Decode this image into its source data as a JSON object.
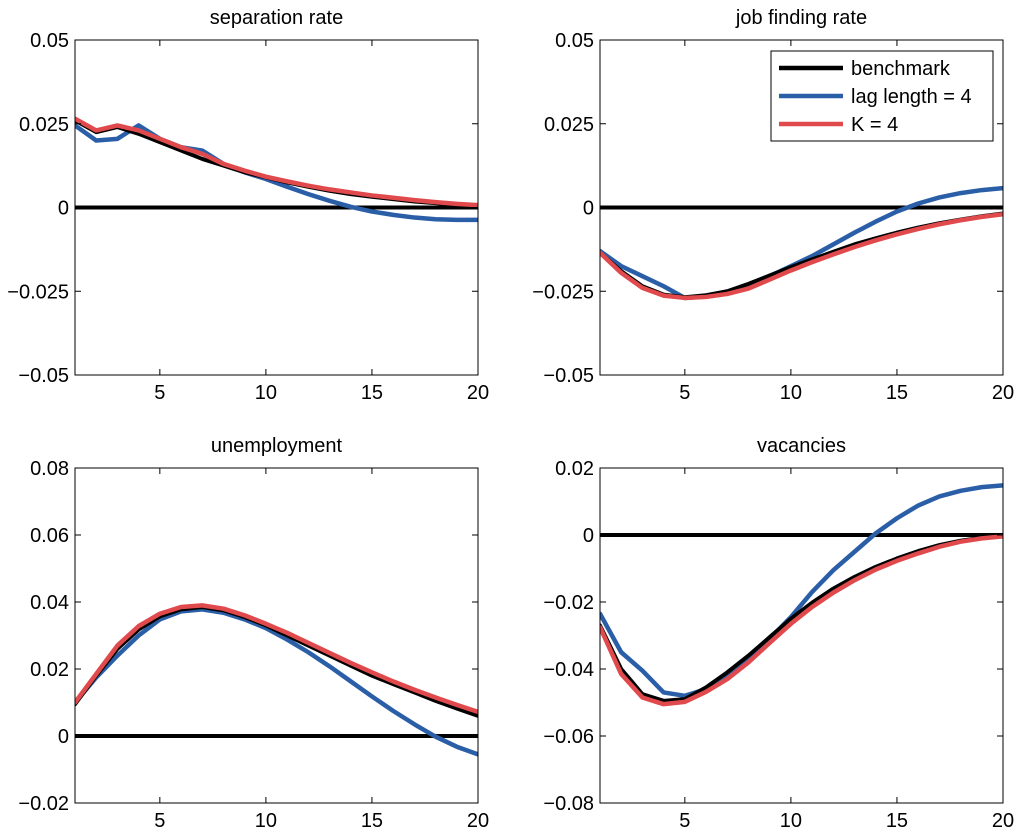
{
  "colors": {
    "benchmark": "#000000",
    "lag": "#2a5fa8",
    "k": "#e14a4d",
    "zero_line": "#000000",
    "axis": "#000000"
  },
  "legend": {
    "placement": "top-right",
    "entries": [
      "benchmark",
      "lag length = 4",
      "K = 4"
    ]
  },
  "chart_data": [
    {
      "type": "line",
      "title": "separation rate",
      "xlim": [
        1,
        20
      ],
      "ylim": [
        -0.05,
        0.05
      ],
      "xticks": [
        5,
        10,
        15,
        20
      ],
      "xtick_labels": [
        "5",
        "10",
        "15",
        "20"
      ],
      "yticks": [
        -0.05,
        -0.025,
        0,
        0.025,
        0.05
      ],
      "ytick_labels": [
        "−0.05",
        "−0.025",
        "0",
        "0.025",
        "0.05"
      ],
      "x": [
        1,
        2,
        3,
        4,
        5,
        6,
        7,
        8,
        9,
        10,
        11,
        12,
        13,
        14,
        15,
        16,
        17,
        18,
        19,
        20
      ],
      "series": [
        {
          "name": "benchmark",
          "values": [
            0.026,
            0.0225,
            0.024,
            0.022,
            0.0195,
            0.017,
            0.0145,
            0.0125,
            0.0105,
            0.009,
            0.0075,
            0.0062,
            0.005,
            0.004,
            0.0032,
            0.0025,
            0.0018,
            0.0013,
            0.0008,
            0.0005
          ]
        },
        {
          "name": "lag length = 4",
          "values": [
            0.0245,
            0.02,
            0.0205,
            0.0245,
            0.0205,
            0.018,
            0.017,
            0.013,
            0.0105,
            0.0085,
            0.0062,
            0.004,
            0.002,
            0.0002,
            -0.0012,
            -0.0022,
            -0.003,
            -0.0035,
            -0.0037,
            -0.0037
          ]
        },
        {
          "name": "K = 4",
          "values": [
            0.0265,
            0.023,
            0.0245,
            0.023,
            0.0205,
            0.018,
            0.016,
            0.013,
            0.011,
            0.0092,
            0.0078,
            0.0065,
            0.0054,
            0.0045,
            0.0036,
            0.0029,
            0.0022,
            0.0016,
            0.0011,
            0.0007
          ]
        }
      ]
    },
    {
      "type": "line",
      "title": "job finding rate",
      "xlim": [
        1,
        20
      ],
      "ylim": [
        -0.05,
        0.05
      ],
      "xticks": [
        5,
        10,
        15,
        20
      ],
      "xtick_labels": [
        "5",
        "10",
        "15",
        "20"
      ],
      "yticks": [
        -0.05,
        -0.025,
        0,
        0.025,
        0.05
      ],
      "ytick_labels": [
        "−0.05",
        "−0.025",
        "0",
        "0.025",
        "0.05"
      ],
      "x": [
        1,
        2,
        3,
        4,
        5,
        6,
        7,
        8,
        9,
        10,
        11,
        12,
        13,
        14,
        15,
        16,
        17,
        18,
        19,
        20
      ],
      "series": [
        {
          "name": "benchmark",
          "values": [
            -0.0135,
            -0.019,
            -0.0235,
            -0.026,
            -0.0268,
            -0.0262,
            -0.025,
            -0.0228,
            -0.0203,
            -0.0178,
            -0.0155,
            -0.0132,
            -0.011,
            -0.0092,
            -0.0075,
            -0.006,
            -0.0047,
            -0.0036,
            -0.0026,
            -0.0018
          ]
        },
        {
          "name": "lag length = 4",
          "values": [
            -0.013,
            -0.0175,
            -0.0205,
            -0.0235,
            -0.027,
            -0.0265,
            -0.0255,
            -0.024,
            -0.0205,
            -0.0175,
            -0.0145,
            -0.011,
            -0.0075,
            -0.0042,
            -0.0012,
            0.0012,
            0.003,
            0.0043,
            0.0052,
            0.0058
          ]
        },
        {
          "name": "K = 4",
          "values": [
            -0.0135,
            -0.0195,
            -0.024,
            -0.0263,
            -0.027,
            -0.0267,
            -0.0258,
            -0.0242,
            -0.0215,
            -0.0188,
            -0.0163,
            -0.014,
            -0.0118,
            -0.0098,
            -0.008,
            -0.0064,
            -0.005,
            -0.0038,
            -0.0028,
            -0.002
          ]
        }
      ]
    },
    {
      "type": "line",
      "title": "unemployment",
      "xlim": [
        1,
        20
      ],
      "ylim": [
        -0.02,
        0.08
      ],
      "xticks": [
        5,
        10,
        15,
        20
      ],
      "xtick_labels": [
        "5",
        "10",
        "15",
        "20"
      ],
      "yticks": [
        -0.02,
        0,
        0.02,
        0.04,
        0.06,
        0.08
      ],
      "ytick_labels": [
        "−0.02",
        "0",
        "0.02",
        "0.04",
        "0.06",
        "0.08"
      ],
      "x": [
        1,
        2,
        3,
        4,
        5,
        6,
        7,
        8,
        9,
        10,
        11,
        12,
        13,
        14,
        15,
        16,
        17,
        18,
        19,
        20
      ],
      "series": [
        {
          "name": "benchmark",
          "values": [
            0.0095,
            0.018,
            0.026,
            0.0318,
            0.0357,
            0.0378,
            0.0385,
            0.0375,
            0.0355,
            0.033,
            0.03,
            0.027,
            0.024,
            0.021,
            0.018,
            0.0155,
            0.013,
            0.0105,
            0.0082,
            0.006
          ]
        },
        {
          "name": "lag length = 4",
          "values": [
            0.01,
            0.0175,
            0.024,
            0.03,
            0.0348,
            0.0372,
            0.0378,
            0.0368,
            0.0348,
            0.0322,
            0.0288,
            0.025,
            0.0208,
            0.0163,
            0.0118,
            0.0075,
            0.0035,
            -0.0002,
            -0.0032,
            -0.0055
          ]
        },
        {
          "name": "K = 4",
          "values": [
            0.01,
            0.0185,
            0.027,
            0.0328,
            0.0365,
            0.0385,
            0.039,
            0.038,
            0.036,
            0.0335,
            0.0308,
            0.0278,
            0.0248,
            0.0218,
            0.019,
            0.0163,
            0.0138,
            0.0115,
            0.0093,
            0.0072
          ]
        }
      ]
    },
    {
      "type": "line",
      "title": "vacancies",
      "xlim": [
        1,
        20
      ],
      "ylim": [
        -0.08,
        0.02
      ],
      "xticks": [
        5,
        10,
        15,
        20
      ],
      "xtick_labels": [
        "5",
        "10",
        "15",
        "20"
      ],
      "yticks": [
        -0.08,
        -0.06,
        -0.04,
        -0.02,
        0,
        0.02
      ],
      "ytick_labels": [
        "−0.08",
        "−0.06",
        "−0.04",
        "−0.02",
        "0",
        "0.02"
      ],
      "x": [
        1,
        2,
        3,
        4,
        5,
        6,
        7,
        8,
        9,
        10,
        11,
        12,
        13,
        14,
        15,
        16,
        17,
        18,
        19,
        20
      ],
      "series": [
        {
          "name": "benchmark",
          "values": [
            -0.027,
            -0.04,
            -0.0475,
            -0.0495,
            -0.049,
            -0.0455,
            -0.041,
            -0.036,
            -0.0305,
            -0.025,
            -0.0202,
            -0.016,
            -0.0125,
            -0.0095,
            -0.007,
            -0.0048,
            -0.003,
            -0.0017,
            -0.0008,
            -0.0003
          ]
        },
        {
          "name": "lag length = 4",
          "values": [
            -0.0235,
            -0.035,
            -0.0405,
            -0.047,
            -0.048,
            -0.046,
            -0.0425,
            -0.037,
            -0.031,
            -0.0245,
            -0.017,
            -0.0105,
            -0.005,
            0.0005,
            0.005,
            0.0088,
            0.0115,
            0.0132,
            0.0143,
            0.0148
          ]
        },
        {
          "name": "K = 4",
          "values": [
            -0.0275,
            -0.0415,
            -0.0485,
            -0.0505,
            -0.0498,
            -0.0468,
            -0.043,
            -0.038,
            -0.0322,
            -0.0265,
            -0.0215,
            -0.0172,
            -0.0135,
            -0.0103,
            -0.0077,
            -0.0055,
            -0.0035,
            -0.002,
            -0.001,
            -0.0004
          ]
        }
      ]
    }
  ]
}
